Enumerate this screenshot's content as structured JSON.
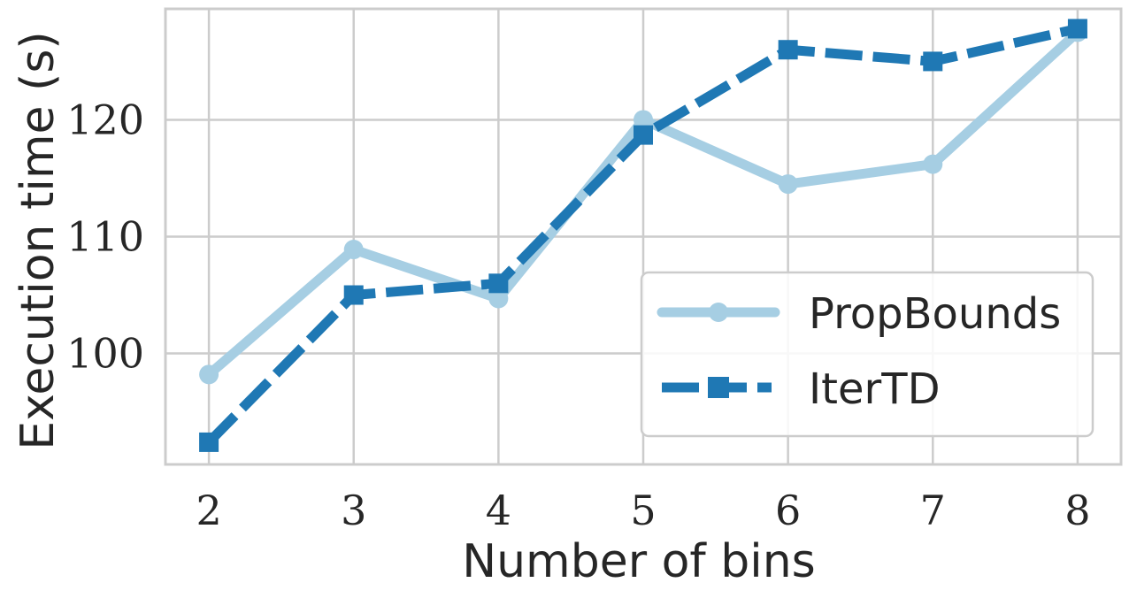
{
  "chart_data": {
    "type": "line",
    "title": "",
    "xlabel": "Number of bins",
    "ylabel": "Execution time (s)",
    "x": [
      2,
      3,
      4,
      5,
      6,
      7,
      8
    ],
    "xlim": [
      1.7,
      8.3
    ],
    "ylim": [
      90.5,
      129.5
    ],
    "yticks": [
      100,
      110,
      120
    ],
    "grid": true,
    "legend_position": "lower-right",
    "series": [
      {
        "name": "PropBounds",
        "values": [
          98.2,
          108.9,
          104.7,
          120.0,
          114.5,
          116.2,
          127.5
        ],
        "color": "#a6cee3",
        "marker": "circle",
        "line_style": "solid"
      },
      {
        "name": "IterTD",
        "values": [
          92.4,
          105.0,
          106.0,
          118.7,
          126.0,
          125.0,
          127.8
        ],
        "color": "#1f78b4",
        "marker": "square",
        "line_style": "dashed"
      }
    ]
  }
}
